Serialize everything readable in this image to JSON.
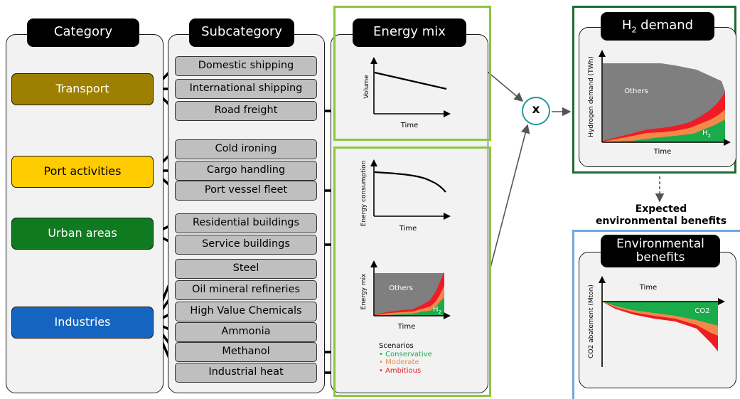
{
  "headers": {
    "category": "Category",
    "subcategory": "Subcategory",
    "energy_mix": "Energy mix",
    "h2_demand_prefix": "H",
    "h2_demand_sub": "2",
    "h2_demand_suffix": " demand",
    "env_benefits": "Environmental benefits"
  },
  "categories": [
    {
      "label": "Transport",
      "color": "#9e8000"
    },
    {
      "label": "Port activities",
      "color": "#ffcc00"
    },
    {
      "label": "Urban areas",
      "color": "#0f7a1f"
    },
    {
      "label": "Industries",
      "color": "#1565c0"
    }
  ],
  "subcategories": [
    "Domestic shipping",
    "International shipping",
    "Road freight",
    "Cold ironing",
    "Cargo handling",
    "Port vessel fleet",
    "Residential buildings",
    "Service buildings",
    "Steel",
    "Oil mineral refineries",
    "High Value Chemicals",
    "Ammonia",
    "Methanol",
    "Industrial heat"
  ],
  "charts": {
    "volume": {
      "ylabel": "Volume",
      "xlabel": "Time"
    },
    "energy_consumption": {
      "ylabel": "Energy consumption",
      "xlabel": "Time"
    },
    "energy_mix": {
      "ylabel": "Energy mix",
      "xlabel": "Time",
      "others": "Others",
      "h2_prefix": "H",
      "h2_sub": "2"
    },
    "h2_demand": {
      "ylabel": "Hydrogen demand (TWh)",
      "xlabel": "Time",
      "others": "Others",
      "h2_prefix": "H",
      "h2_sub": "2"
    },
    "co2": {
      "ylabel": "CO2 abatement (Mton)",
      "xlabel": "Time",
      "series_label": "CO2"
    }
  },
  "scenarios": {
    "title": "Scenarios",
    "items": [
      {
        "label": "Conservative",
        "color": "#1aab4b"
      },
      {
        "label": "Moderate",
        "color": "#f2894a"
      },
      {
        "label": "Ambitious",
        "color": "#ee1c25"
      }
    ]
  },
  "multiply_symbol": "x",
  "expected_benefits": {
    "line1": "Expected",
    "line2": "environmental benefits"
  },
  "colors": {
    "others_gray": "#7f7f7f",
    "green": "#1aab4b",
    "orange": "#f2894a",
    "red": "#ee1c25",
    "energy_frame": "#8cc63f",
    "h2_frame": "#1e6b32",
    "env_frame": "#6fa8dc",
    "multiply_ring": "#2596a6"
  }
}
